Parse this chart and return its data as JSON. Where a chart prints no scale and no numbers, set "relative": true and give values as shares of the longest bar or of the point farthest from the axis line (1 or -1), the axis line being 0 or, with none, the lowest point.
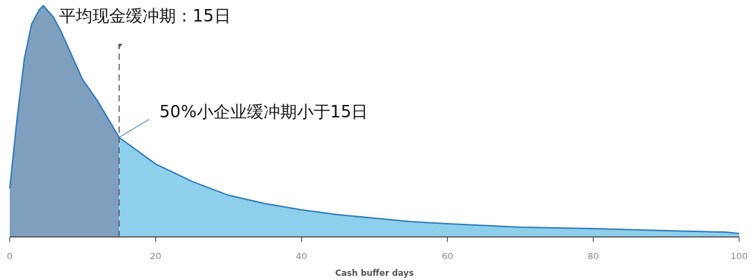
{
  "chart_data": {
    "type": "area",
    "relative": true,
    "xlabel": "Cash buffer days",
    "xlim": [
      0,
      100
    ],
    "xticks": [
      0,
      20,
      40,
      60,
      80,
      100
    ],
    "grid": false,
    "series": [
      {
        "color": "#7f9fbf",
        "x": [
          0,
          1,
          2,
          3,
          4,
          4.6,
          5,
          6,
          7,
          8,
          10,
          12,
          15
        ],
        "values": [
          0.21,
          0.51,
          0.77,
          0.92,
          0.98,
          1,
          0.985,
          0.95,
          0.89,
          0.82,
          0.68,
          0.59,
          0.43
        ]
      },
      {
        "color": "#8ecfec",
        "x": [
          15,
          20,
          25,
          30,
          35,
          40,
          45,
          50,
          55,
          60,
          70,
          80,
          90,
          98,
          100
        ],
        "values": [
          0.43,
          0.315,
          0.24,
          0.18,
          0.144,
          0.117,
          0.096,
          0.081,
          0.066,
          0.057,
          0.042,
          0.036,
          0.027,
          0.021,
          0.015
        ]
      }
    ],
    "ref_lines": [
      {
        "axis": "x",
        "value": 15,
        "label": "平均现金缓冲期：15日",
        "line_style": "dashed",
        "color": "#555555"
      }
    ],
    "annotations": [
      {
        "text": "50%小企业缓冲期小于15日",
        "x": 15,
        "y": 0.43
      }
    ]
  }
}
